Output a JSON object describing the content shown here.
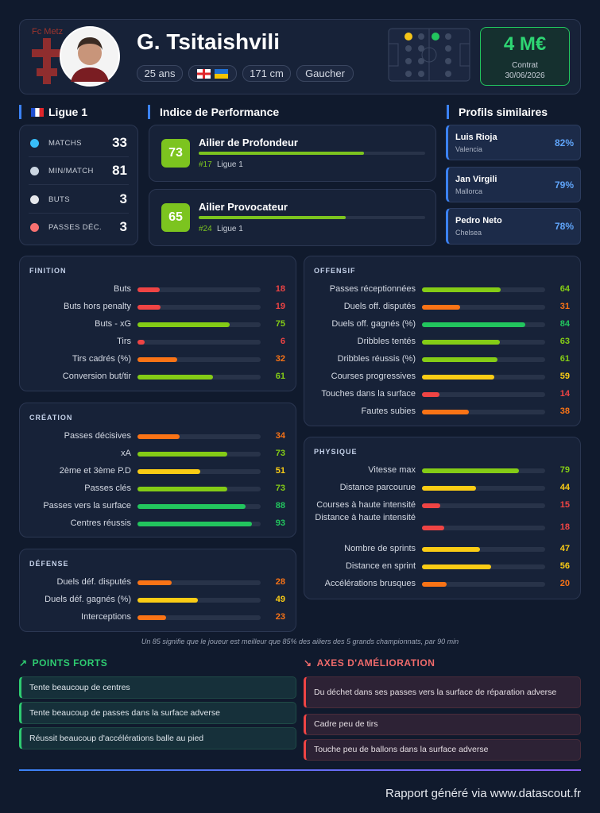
{
  "header": {
    "club": "Fc Metz",
    "name": "G. Tsitaishvili",
    "tags": [
      "25 ans",
      "171 cm",
      "Gaucher"
    ],
    "value": "4 M€",
    "contract_label": "Contrat",
    "contract_date": "30/06/2026"
  },
  "league": {
    "title": "Ligue 1",
    "stats": [
      {
        "label": "MATCHS",
        "value": 33
      },
      {
        "label": "MIN/MATCH",
        "value": 81
      },
      {
        "label": "BUTS",
        "value": 3
      },
      {
        "label": "PASSES DÉC.",
        "value": 3
      }
    ]
  },
  "performance": {
    "title": "Indice de Performance",
    "bar_range": [
      0,
      100
    ],
    "profiles": [
      {
        "score": 73,
        "name": "Ailier de Profondeur",
        "rank": "#17",
        "league": "Ligue 1"
      },
      {
        "score": 65,
        "name": "Ailier Provocateur",
        "rank": "#24",
        "league": "Ligue 1"
      }
    ]
  },
  "similar": {
    "title": "Profils similaires",
    "players": [
      {
        "name": "Luis Rioja",
        "club": "Valencia",
        "match": "82%"
      },
      {
        "name": "Jan Virgili",
        "club": "Mallorca",
        "match": "79%"
      },
      {
        "name": "Pedro Neto",
        "club": "Chelsea",
        "match": "78%"
      }
    ]
  },
  "bar_range": [
    0,
    100
  ],
  "panels": [
    {
      "title": "FINITION",
      "rows": [
        {
          "label": "Buts",
          "value": 18
        },
        {
          "label": "Buts hors penalty",
          "value": 19
        },
        {
          "label": "Buts - xG",
          "value": 75
        },
        {
          "label": "Tirs",
          "value": 6
        },
        {
          "label": "Tirs cadrés (%)",
          "value": 32
        },
        {
          "label": "Conversion but/tir",
          "value": 61
        }
      ]
    },
    {
      "title": "CRÉATION",
      "rows": [
        {
          "label": "Passes décisives",
          "value": 34
        },
        {
          "label": "xA",
          "value": 73
        },
        {
          "label": "2ème et 3ème P.D",
          "value": 51
        },
        {
          "label": "Passes clés",
          "value": 73
        },
        {
          "label": "Passes vers la surface",
          "value": 88
        },
        {
          "label": "Centres réussis",
          "value": 93
        }
      ]
    },
    {
      "title": "DÉFENSE",
      "rows": [
        {
          "label": "Duels déf. disputés",
          "value": 28
        },
        {
          "label": "Duels déf. gagnés (%)",
          "value": 49
        },
        {
          "label": "Interceptions",
          "value": 23
        }
      ]
    },
    {
      "title": "OFFENSIF",
      "rows": [
        {
          "label": "Passes réceptionnées",
          "value": 64
        },
        {
          "label": "Duels off. disputés",
          "value": 31
        },
        {
          "label": "Duels off. gagnés (%)",
          "value": 84
        },
        {
          "label": "Dribbles tentés",
          "value": 63
        },
        {
          "label": "Dribbles réussis (%)",
          "value": 61
        },
        {
          "label": "Courses progressives",
          "value": 59
        },
        {
          "label": "Touches dans la surface",
          "value": 14
        },
        {
          "label": "Fautes subies",
          "value": 38
        }
      ]
    },
    {
      "title": "PHYSIQUE",
      "rows": [
        {
          "label": "Vitesse max",
          "value": 79
        },
        {
          "label": "Distance parcourue",
          "value": 44
        },
        {
          "label": "Courses à haute intensité",
          "value": 15
        },
        {
          "label": "Distance à haute intensité",
          "value": 18
        },
        {
          "label": "Nombre de sprints",
          "value": 47
        },
        {
          "label": "Distance en sprint",
          "value": 56
        },
        {
          "label": "Accélérations brusques",
          "value": 20
        }
      ]
    }
  ],
  "footnote": "Un 85 signifie que le joueur est meilleur que 85% des ailiers des 5 grands championnats, par 90 min",
  "strengths": {
    "title": "POINTS FORTS",
    "items": [
      "Tente beaucoup de centres",
      "Tente beaucoup de passes dans la surface adverse",
      "Réussit beaucoup d'accélérations balle au pied"
    ]
  },
  "weaknesses": {
    "title": "AXES D'AMÉLIORATION",
    "items": [
      "Du déchet dans ses passes vers la surface de réparation adverse",
      "Cadre peu de tirs",
      "Touche peu de ballons dans la surface adverse"
    ]
  },
  "footer": "Rapport généré via www.datascout.fr"
}
